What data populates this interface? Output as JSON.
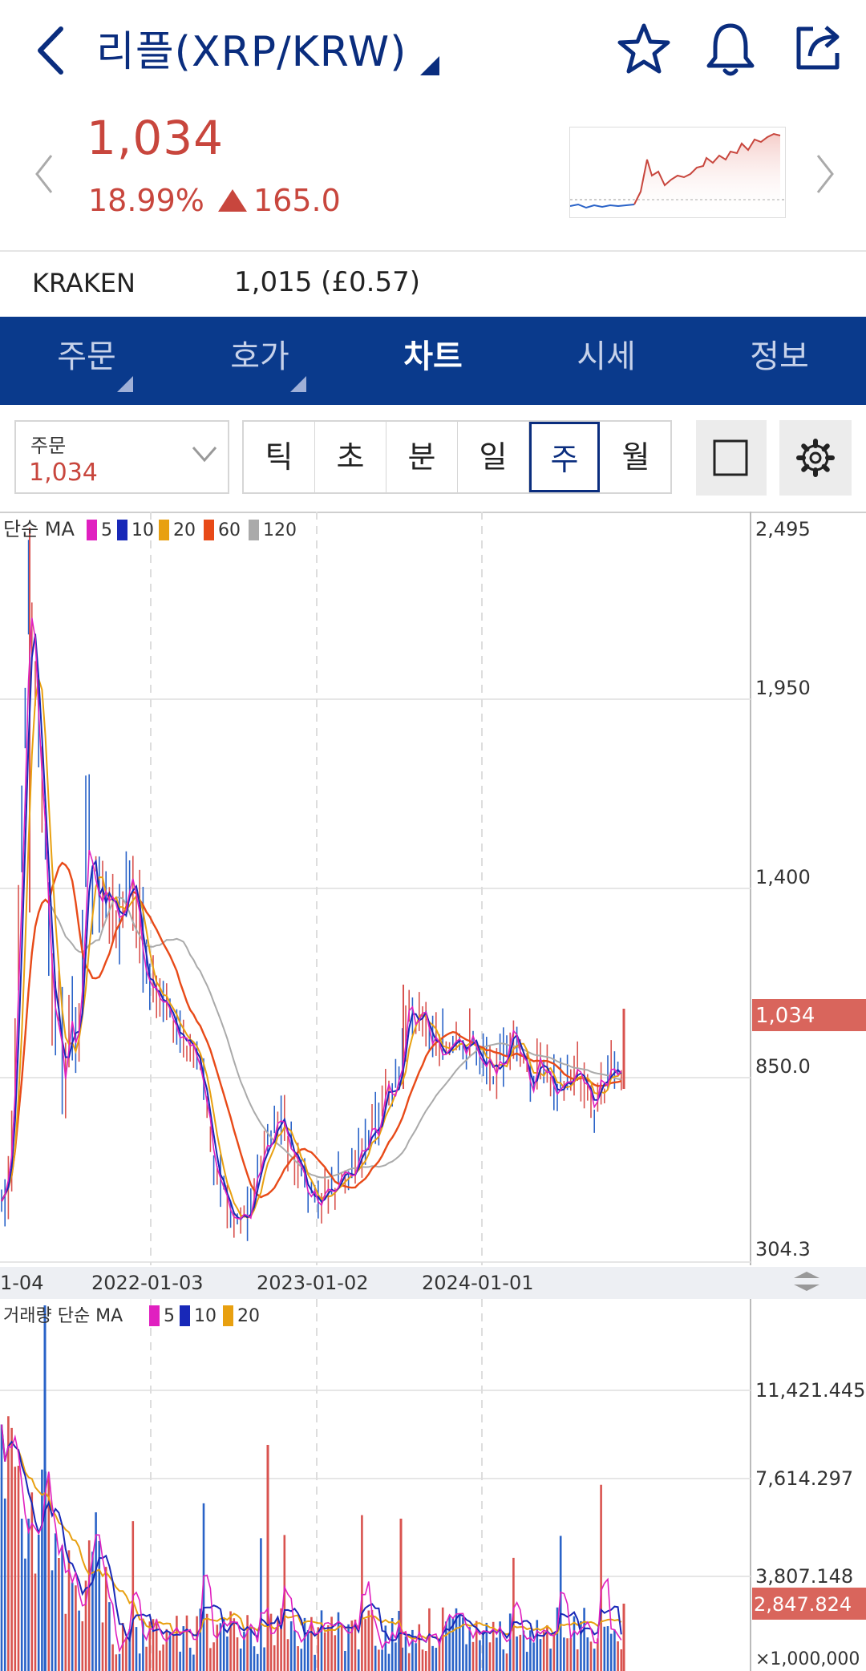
{
  "header": {
    "title": "리플(XRP/KRW)",
    "icons": [
      "back-icon",
      "star-icon",
      "bell-icon",
      "share-icon"
    ]
  },
  "price": {
    "current": "1,034",
    "change_pct": "18.99%",
    "change_amt": "165.0",
    "color": "#c8463d"
  },
  "kraken": {
    "label": "KRAKEN",
    "value": "1,015 (£0.57)"
  },
  "tabs": [
    {
      "label": "주문"
    },
    {
      "label": "호가"
    },
    {
      "label": "차트"
    },
    {
      "label": "시세"
    },
    {
      "label": "정보"
    }
  ],
  "active_tab": 2,
  "order_select": {
    "label": "주문",
    "value": "1,034"
  },
  "periods": [
    "틱",
    "초",
    "분",
    "일",
    "주",
    "월"
  ],
  "active_period": 4,
  "price_chart": {
    "legend_prefix": "단순 MA",
    "ma": [
      {
        "label": "5",
        "color": "#e020c0"
      },
      {
        "label": "10",
        "color": "#1828b8"
      },
      {
        "label": "20",
        "color": "#e8a010"
      },
      {
        "label": "60",
        "color": "#e84a18"
      },
      {
        "label": "120",
        "color": "#aaaaaa"
      }
    ],
    "y_ticks": [
      "2,495",
      "1,950",
      "1,400",
      "850.0",
      "304.3"
    ],
    "y_tick_values": [
      2495,
      1950,
      1400,
      850,
      304.3
    ],
    "current_label": "1,034",
    "current_value": 1034,
    "x_ticks": [
      "1-04",
      "2022-01-03",
      "2023-01-02",
      "2024-01-01"
    ]
  },
  "volume_chart": {
    "legend_prefix": "거래량 단순 MA",
    "ma": [
      {
        "label": "5",
        "color": "#e020c0"
      },
      {
        "label": "10",
        "color": "#1828b8"
      },
      {
        "label": "20",
        "color": "#e8a010"
      }
    ],
    "y_ticks": [
      "11,421.445",
      "7,614.297",
      "3,807.148"
    ],
    "y_tick_values": [
      11421.445,
      7614.297,
      3807.148
    ],
    "current_label": "2,847.824",
    "current_value": 2847.824,
    "unit": "×1,000,000"
  },
  "colors": {
    "brand": "#0a3a8c",
    "up": "#c8463d",
    "down": "#2a63c8"
  }
}
